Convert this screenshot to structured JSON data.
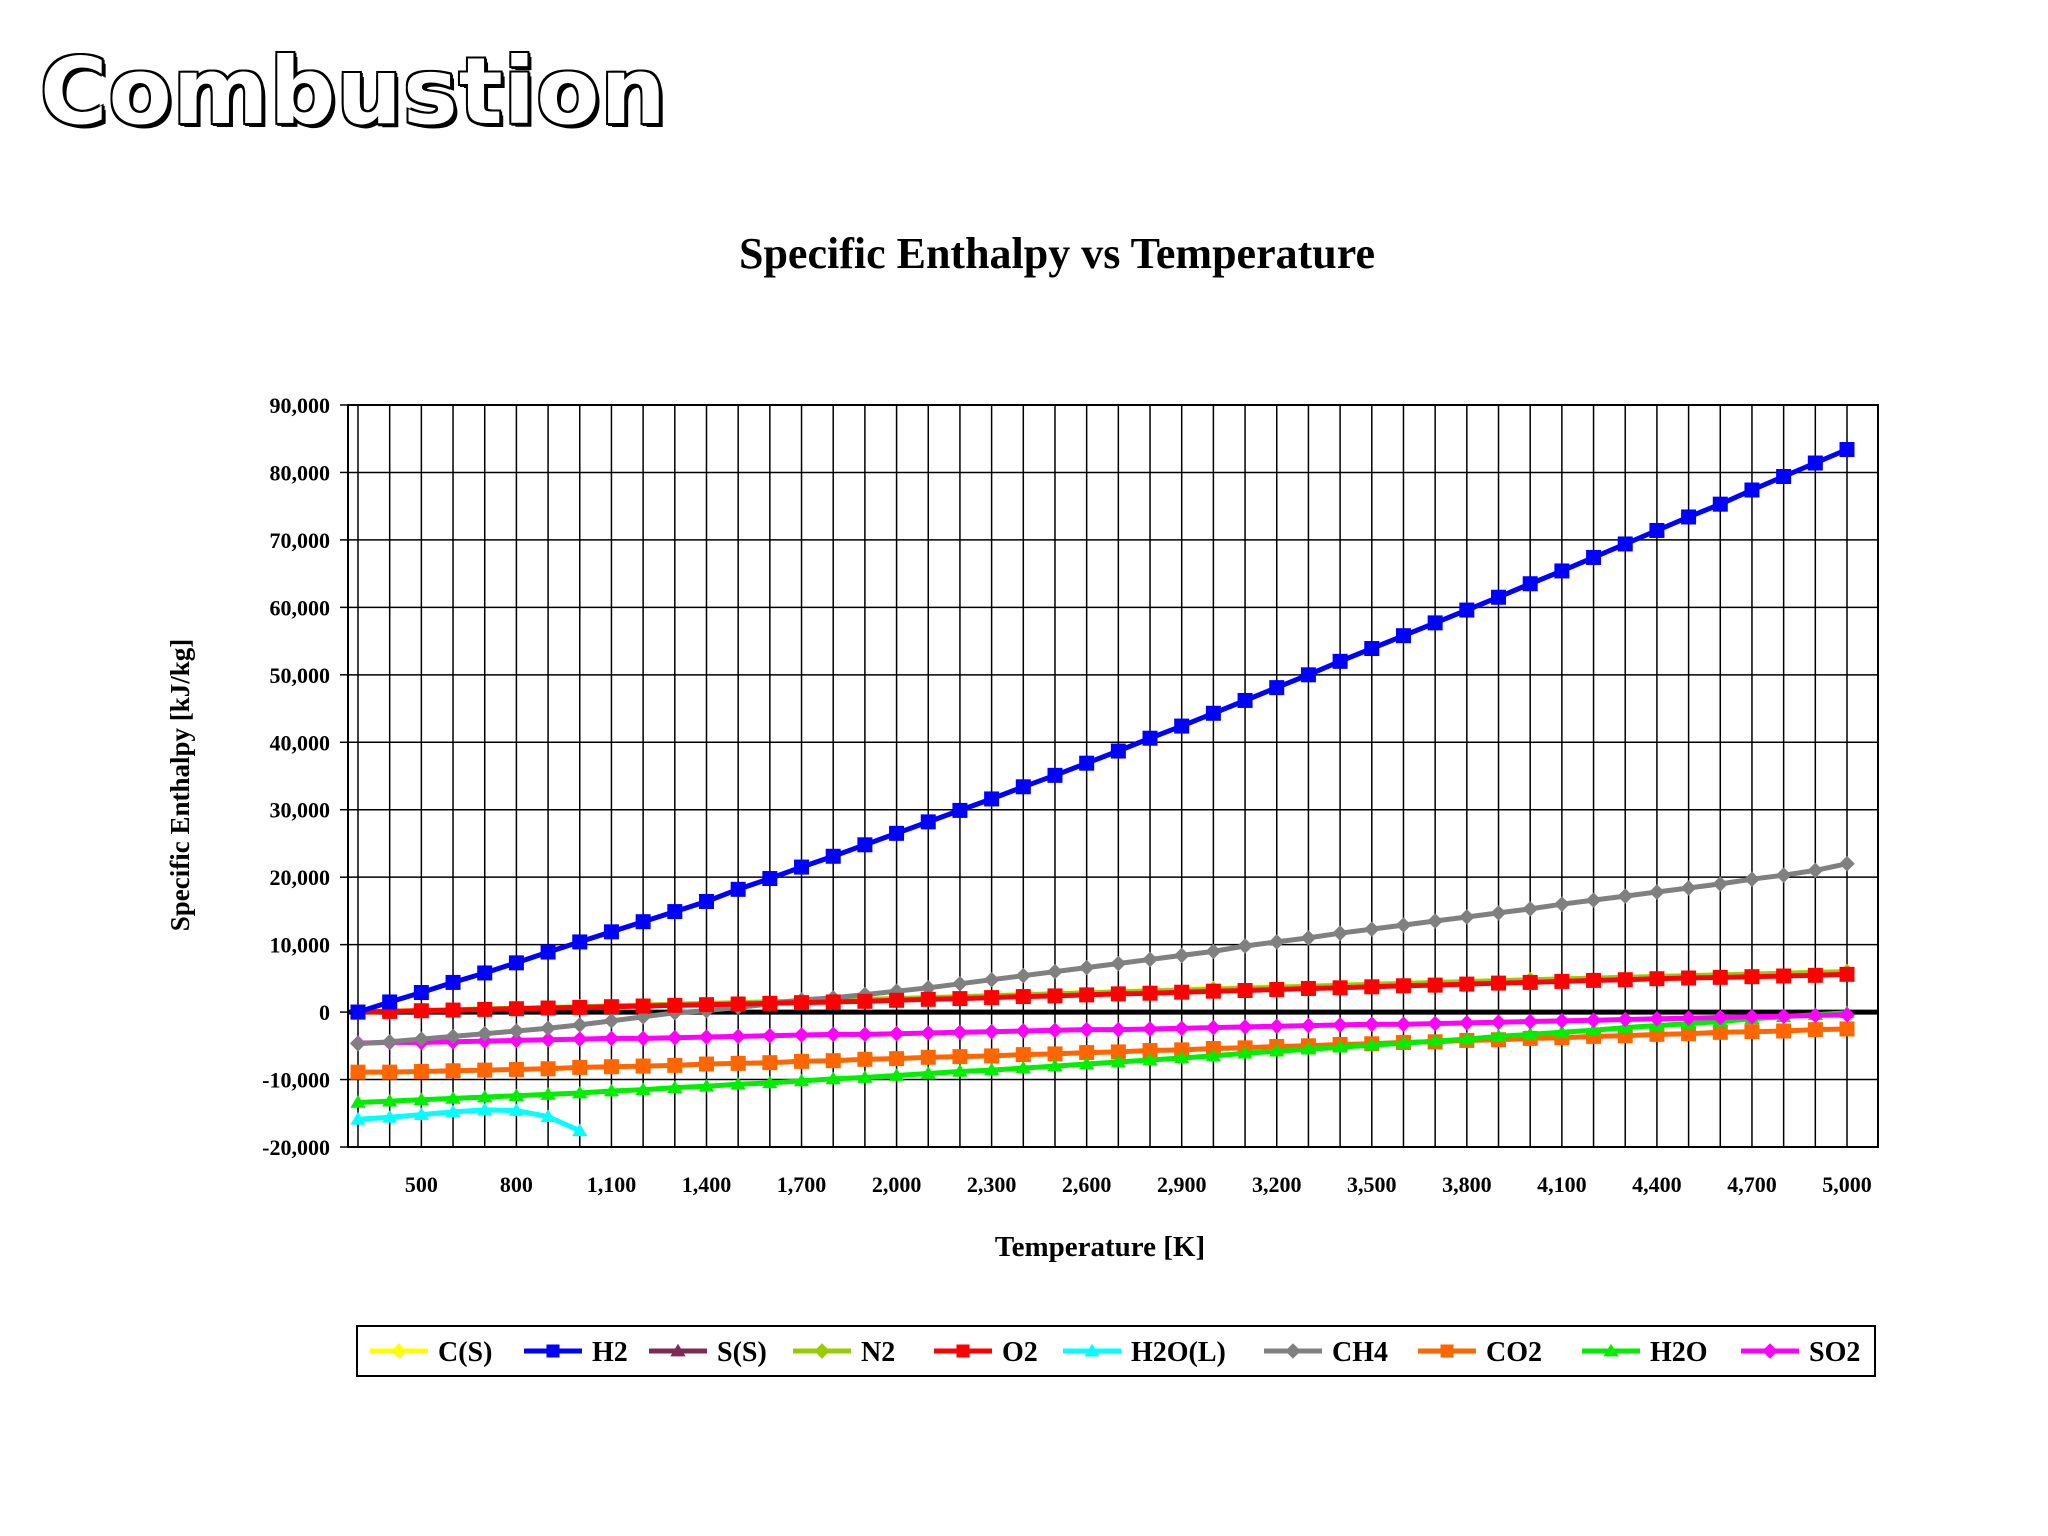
{
  "slide": {
    "title": "Combustion"
  },
  "chart_data": {
    "type": "line",
    "title": "Specific Enthalpy vs Temperature",
    "xlabel": "Temperature [K]",
    "ylabel": "Specific Enthalpy [kJ/kg]",
    "xlim": [
      300,
      5000
    ],
    "ylim": [
      -20000,
      90000
    ],
    "x_ticks": [
      500,
      800,
      1100,
      1400,
      1700,
      2000,
      2300,
      2600,
      2900,
      3200,
      3500,
      3800,
      4100,
      4400,
      4700,
      5000
    ],
    "x_tick_labels": [
      "500",
      "800",
      "1,100",
      "1,400",
      "1,700",
      "2,000",
      "2,300",
      "2,600",
      "2,900",
      "3,200",
      "3,500",
      "3,800",
      "4,100",
      "4,400",
      "4,700",
      "5,000"
    ],
    "y_ticks": [
      -20000,
      -10000,
      0,
      10000,
      20000,
      30000,
      40000,
      50000,
      60000,
      70000,
      80000,
      90000
    ],
    "y_tick_labels": [
      "-20,000",
      "-10,000",
      "0",
      "10,000",
      "20,000",
      "30,000",
      "40,000",
      "50,000",
      "60,000",
      "70,000",
      "80,000",
      "90,000"
    ],
    "grid": true,
    "legend_position": "bottom",
    "series": [
      {
        "name": "C(S)",
        "color": "#ffff00",
        "marker": "diamond",
        "x": [
          300,
          1000,
          2000,
          3000,
          4000,
          5000
        ],
        "y": [
          0,
          800,
          2000,
          3500,
          4800,
          6000
        ]
      },
      {
        "name": "H2",
        "color": "#0000ff",
        "marker": "square",
        "x": [
          300,
          400,
          500,
          600,
          700,
          800,
          900,
          1000,
          1100,
          1200,
          1300,
          1400,
          1500,
          1600,
          1700,
          1800,
          1900,
          2000,
          2100,
          2200,
          2300,
          2400,
          2500,
          2600,
          2700,
          2800,
          2900,
          3000,
          3100,
          3200,
          3300,
          3400,
          3500,
          3600,
          3700,
          3800,
          3900,
          4000,
          4100,
          4200,
          4300,
          4400,
          4500,
          4600,
          4700,
          4800,
          4900,
          5000
        ],
        "y": [
          0,
          1500,
          2900,
          4400,
          5800,
          7300,
          8900,
          10400,
          11900,
          13400,
          14900,
          16400,
          18200,
          19800,
          21500,
          23100,
          24800,
          26500,
          28200,
          29900,
          31600,
          33400,
          35100,
          36900,
          38700,
          40600,
          42400,
          44300,
          46200,
          48100,
          50000,
          52000,
          53900,
          55800,
          57700,
          59600,
          61500,
          63500,
          65400,
          67400,
          69400,
          71400,
          73400,
          75300,
          77400,
          79400,
          81400,
          83400
        ]
      },
      {
        "name": "S(S)",
        "color": "#7f2a55",
        "marker": "triangle",
        "x": [
          300,
          1000,
          2000,
          3000,
          4000,
          5000
        ],
        "y": [
          0,
          700,
          1800,
          3300,
          4600,
          5800
        ]
      },
      {
        "name": "N2",
        "color": "#99cc00",
        "marker": "diamond",
        "x": [
          300,
          1000,
          2000,
          3000,
          4000,
          5000
        ],
        "y": [
          0,
          800,
          2000,
          3400,
          4800,
          6000
        ]
      },
      {
        "name": "O2",
        "color": "#ff0000",
        "marker": "square",
        "x": [
          300,
          400,
          500,
          600,
          700,
          800,
          900,
          1000,
          1100,
          1200,
          1300,
          1400,
          1500,
          1600,
          1700,
          1800,
          1900,
          2000,
          2100,
          2200,
          2300,
          2400,
          2500,
          2600,
          2700,
          2800,
          2900,
          3000,
          3100,
          3200,
          3300,
          3400,
          3500,
          3600,
          3700,
          3800,
          3900,
          4000,
          4100,
          4200,
          4300,
          4400,
          4500,
          4600,
          4700,
          4800,
          4900,
          5000
        ],
        "y": [
          0,
          100,
          200,
          300,
          400,
          500,
          600,
          700,
          800,
          900,
          1000,
          1100,
          1200,
          1300,
          1400,
          1500,
          1600,
          1750,
          1900,
          2000,
          2150,
          2300,
          2400,
          2550,
          2700,
          2800,
          2950,
          3100,
          3200,
          3350,
          3500,
          3600,
          3750,
          3900,
          4000,
          4150,
          4300,
          4400,
          4550,
          4700,
          4800,
          4950,
          5050,
          5150,
          5250,
          5350,
          5450,
          5600
        ]
      },
      {
        "name": "H2O(L)",
        "color": "#00ffff",
        "marker": "triangle",
        "x": [
          300,
          400,
          500,
          600,
          700,
          800,
          900,
          1000
        ],
        "y": [
          -15900,
          -15600,
          -15200,
          -14800,
          -14500,
          -14600,
          -15500,
          -17600
        ]
      },
      {
        "name": "CH4",
        "color": "#808080",
        "marker": "diamond",
        "x": [
          300,
          400,
          500,
          600,
          700,
          800,
          900,
          1000,
          1100,
          1200,
          1300,
          1400,
          1500,
          1600,
          1700,
          1800,
          1900,
          2000,
          2100,
          2200,
          2300,
          2400,
          2500,
          2600,
          2700,
          2800,
          2900,
          3000,
          3100,
          3200,
          3300,
          3400,
          3500,
          3600,
          3700,
          3800,
          3900,
          4000,
          4100,
          4200,
          4300,
          4400,
          4500,
          4600,
          4700,
          4800,
          4900,
          5000
        ],
        "y": [
          -4700,
          -4400,
          -4000,
          -3600,
          -3200,
          -2800,
          -2400,
          -1900,
          -1300,
          -700,
          -100,
          200,
          700,
          1200,
          1800,
          2100,
          2600,
          3100,
          3600,
          4200,
          4800,
          5400,
          6000,
          6600,
          7200,
          7800,
          8400,
          9000,
          9800,
          10400,
          11000,
          11700,
          12300,
          12900,
          13500,
          14100,
          14700,
          15300,
          16000,
          16600,
          17200,
          17800,
          18400,
          19000,
          19700,
          20300,
          21000,
          22000
        ]
      },
      {
        "name": "CO2",
        "color": "#ff6600",
        "marker": "square",
        "x": [
          300,
          400,
          500,
          600,
          700,
          800,
          900,
          1000,
          1100,
          1200,
          1300,
          1400,
          1500,
          1600,
          1700,
          1800,
          1900,
          2000,
          2100,
          2200,
          2300,
          2400,
          2500,
          2600,
          2700,
          2800,
          2900,
          3000,
          3100,
          3200,
          3300,
          3400,
          3500,
          3600,
          3700,
          3800,
          3900,
          4000,
          4100,
          4200,
          4300,
          4400,
          4500,
          4600,
          4700,
          4800,
          4900,
          5000
        ],
        "y": [
          -8900,
          -8900,
          -8800,
          -8700,
          -8600,
          -8500,
          -8400,
          -8200,
          -8100,
          -8000,
          -7900,
          -7700,
          -7600,
          -7500,
          -7300,
          -7200,
          -7000,
          -6900,
          -6700,
          -6600,
          -6500,
          -6300,
          -6200,
          -6000,
          -5900,
          -5700,
          -5600,
          -5400,
          -5300,
          -5100,
          -5000,
          -4800,
          -4700,
          -4500,
          -4400,
          -4200,
          -4100,
          -3900,
          -3800,
          -3600,
          -3500,
          -3300,
          -3200,
          -3000,
          -2900,
          -2800,
          -2600,
          -2500
        ]
      },
      {
        "name": "H2O",
        "color": "#00ee00",
        "marker": "triangle",
        "x": [
          300,
          400,
          500,
          600,
          700,
          800,
          900,
          1000,
          1100,
          1200,
          1300,
          1400,
          1500,
          1600,
          1700,
          1800,
          1900,
          2000,
          2100,
          2200,
          2300,
          2400,
          2500,
          2600,
          2700,
          2800,
          2900,
          3000,
          3100,
          3200,
          3300,
          3400,
          3500,
          3600,
          3700,
          3800,
          3900,
          4000,
          4100,
          4200,
          4300,
          4400,
          4500,
          4600,
          4700,
          4800,
          4900,
          5000
        ],
        "y": [
          -13400,
          -13200,
          -13000,
          -12800,
          -12600,
          -12400,
          -12200,
          -12000,
          -11700,
          -11500,
          -11200,
          -11000,
          -10700,
          -10500,
          -10200,
          -9900,
          -9700,
          -9400,
          -9100,
          -8800,
          -8600,
          -8300,
          -8000,
          -7700,
          -7400,
          -7100,
          -6800,
          -6500,
          -6100,
          -5800,
          -5500,
          -5200,
          -4900,
          -4600,
          -4300,
          -4000,
          -3600,
          -3300,
          -3000,
          -2700,
          -2300,
          -2000,
          -1700,
          -1400,
          -1000,
          -700,
          -400,
          -100
        ]
      },
      {
        "name": "SO2",
        "color": "#ff00ff",
        "marker": "diamond",
        "x": [
          300,
          400,
          500,
          600,
          700,
          800,
          900,
          1000,
          1100,
          1200,
          1300,
          1400,
          1500,
          1600,
          1700,
          1800,
          1900,
          2000,
          2100,
          2200,
          2300,
          2400,
          2500,
          2600,
          2700,
          2800,
          2900,
          3000,
          3100,
          3200,
          3300,
          3400,
          3500,
          3600,
          3700,
          3800,
          3900,
          4000,
          4100,
          4200,
          4300,
          4400,
          4500,
          4600,
          4700,
          4800,
          4900,
          5000
        ],
        "y": [
          -4600,
          -4500,
          -4500,
          -4400,
          -4300,
          -4200,
          -4100,
          -4000,
          -3900,
          -3900,
          -3800,
          -3700,
          -3600,
          -3500,
          -3400,
          -3300,
          -3300,
          -3200,
          -3100,
          -3000,
          -2900,
          -2800,
          -2700,
          -2600,
          -2600,
          -2500,
          -2400,
          -2300,
          -2200,
          -2100,
          -2000,
          -1900,
          -1800,
          -1800,
          -1700,
          -1600,
          -1500,
          -1400,
          -1300,
          -1200,
          -1100,
          -1000,
          -900,
          -800,
          -700,
          -600,
          -500,
          -400
        ]
      }
    ]
  }
}
